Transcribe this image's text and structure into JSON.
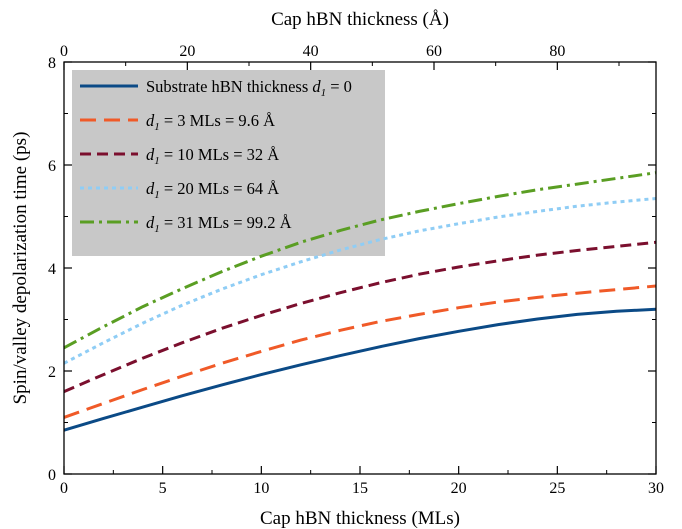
{
  "chart_data": {
    "type": "line",
    "xlabel": "Cap hBN thickness (MLs)",
    "x2label": "Cap hBN thickness (Å)",
    "ylabel": "Spin/valley depolarization time (ps)",
    "xlim": [
      0,
      30
    ],
    "x2lim": [
      0,
      96
    ],
    "ylim": [
      0,
      8
    ],
    "x_ticks": [
      0,
      5,
      10,
      15,
      20,
      25,
      30
    ],
    "x2_ticks": [
      0,
      20,
      40,
      60,
      80
    ],
    "y_ticks": [
      0,
      2,
      4,
      6,
      8
    ],
    "grid": false,
    "legend_position": "top-left",
    "x": [
      0,
      2,
      4,
      6,
      8,
      10,
      12,
      14,
      16,
      18,
      20,
      22,
      24,
      26,
      28,
      30
    ],
    "series": [
      {
        "label_prefix": "Substrate hBN thickness ",
        "label_var": "d",
        "label_sub": "1",
        "label_suffix": " = 0",
        "color": "#0b4a86",
        "dash": "",
        "values": [
          0.85,
          1.08,
          1.3,
          1.52,
          1.73,
          1.93,
          2.12,
          2.3,
          2.47,
          2.63,
          2.77,
          2.9,
          3.01,
          3.1,
          3.16,
          3.2
        ]
      },
      {
        "label_prefix": "",
        "label_var": "d",
        "label_sub": "1",
        "label_suffix": " = 3 MLs = 9.6 Å",
        "color": "#f05a28",
        "dash": "16,8",
        "values": [
          1.1,
          1.37,
          1.64,
          1.9,
          2.15,
          2.38,
          2.6,
          2.79,
          2.96,
          3.1,
          3.23,
          3.34,
          3.43,
          3.51,
          3.58,
          3.65
        ]
      },
      {
        "label_prefix": "",
        "label_var": "d",
        "label_sub": "1",
        "label_suffix": " = 10 MLs = 32 Å",
        "color": "#7b0f2e",
        "dash": "11,6",
        "values": [
          1.6,
          1.93,
          2.25,
          2.55,
          2.83,
          3.08,
          3.31,
          3.52,
          3.71,
          3.88,
          4.02,
          4.14,
          4.25,
          4.34,
          4.42,
          4.5
        ]
      },
      {
        "label_prefix": "",
        "label_var": "d",
        "label_sub": "1",
        "label_suffix": " = 20 MLs = 64 Å",
        "color": "#8fcdf5",
        "dash": "4,4",
        "values": [
          2.15,
          2.55,
          2.93,
          3.28,
          3.59,
          3.87,
          4.12,
          4.35,
          4.55,
          4.72,
          4.86,
          4.99,
          5.1,
          5.2,
          5.28,
          5.35
        ]
      },
      {
        "label_prefix": "",
        "label_var": "d",
        "label_sub": "1",
        "label_suffix": " = 31 MLs = 99.2 Å",
        "color": "#5a9e23",
        "dash": "14,5,3,5",
        "values": [
          2.45,
          2.86,
          3.25,
          3.6,
          3.93,
          4.23,
          4.5,
          4.73,
          4.93,
          5.1,
          5.25,
          5.39,
          5.52,
          5.63,
          5.74,
          5.85
        ]
      }
    ]
  }
}
